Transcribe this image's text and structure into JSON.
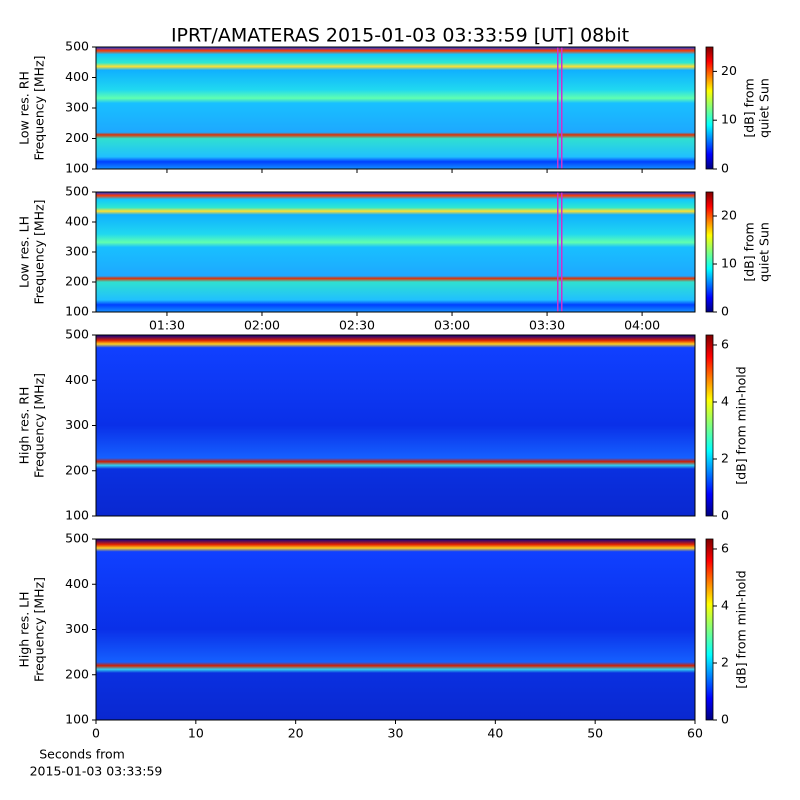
{
  "title": "IPRT/AMATERAS 2015-01-03 03:33:59 [UT]   08bit",
  "chart_data": [
    {
      "type": "heatmap",
      "ylabel": [
        "Low res. RH",
        "Frequency [MHz]"
      ],
      "ylim": [
        100,
        500
      ],
      "yticks": [
        100,
        200,
        300,
        400,
        500
      ],
      "xlim": [
        67.6,
        256.7
      ],
      "highlight_x": 214,
      "highlight_color": "#cc33cc",
      "colorbar_label": [
        "[dB] from",
        "quiet Sun"
      ],
      "clim": [
        0,
        25
      ],
      "cticks": [
        0,
        10,
        20
      ]
    },
    {
      "type": "heatmap",
      "ylabel": [
        "Low res. LH",
        "Frequency [MHz]"
      ],
      "ylim": [
        100,
        500
      ],
      "yticks": [
        100,
        200,
        300,
        400,
        500
      ],
      "xlim": [
        67.6,
        256.7
      ],
      "highlight_x": 214,
      "highlight_color": "#cc33cc",
      "xticks": [
        {
          "value": 90,
          "label": "01:30"
        },
        {
          "value": 120,
          "label": "02:00"
        },
        {
          "value": 150,
          "label": "02:30"
        },
        {
          "value": 180,
          "label": "03:00"
        },
        {
          "value": 210,
          "label": "03:30"
        },
        {
          "value": 240,
          "label": "04:00"
        }
      ],
      "colorbar_label": [
        "[dB] from",
        "quiet Sun"
      ],
      "clim": [
        0,
        25
      ],
      "cticks": [
        0,
        10,
        20
      ]
    },
    {
      "type": "heatmap",
      "ylabel": [
        "High res. RH",
        "Frequency [MHz]"
      ],
      "ylim": [
        100,
        500
      ],
      "yticks": [
        100,
        200,
        300,
        400,
        500
      ],
      "colorbar_label": [
        "[dB] from min-hold"
      ],
      "clim": [
        0,
        6.35
      ],
      "cticks": [
        0,
        2,
        4,
        6
      ]
    },
    {
      "type": "heatmap",
      "ylabel": [
        "High res. LH",
        "Frequency [MHz]"
      ],
      "ylim": [
        100,
        500
      ],
      "yticks": [
        100,
        200,
        300,
        400,
        500
      ],
      "xlim": [
        0,
        60
      ],
      "xticks": [
        0,
        10,
        20,
        30,
        40,
        50,
        60
      ],
      "xlabel": [
        "Seconds from",
        "2015-01-03 03:33:59"
      ],
      "colorbar_label": [
        "[dB] from min-hold"
      ],
      "clim": [
        0,
        6.35
      ],
      "cticks": [
        0,
        2,
        4,
        6
      ]
    }
  ]
}
